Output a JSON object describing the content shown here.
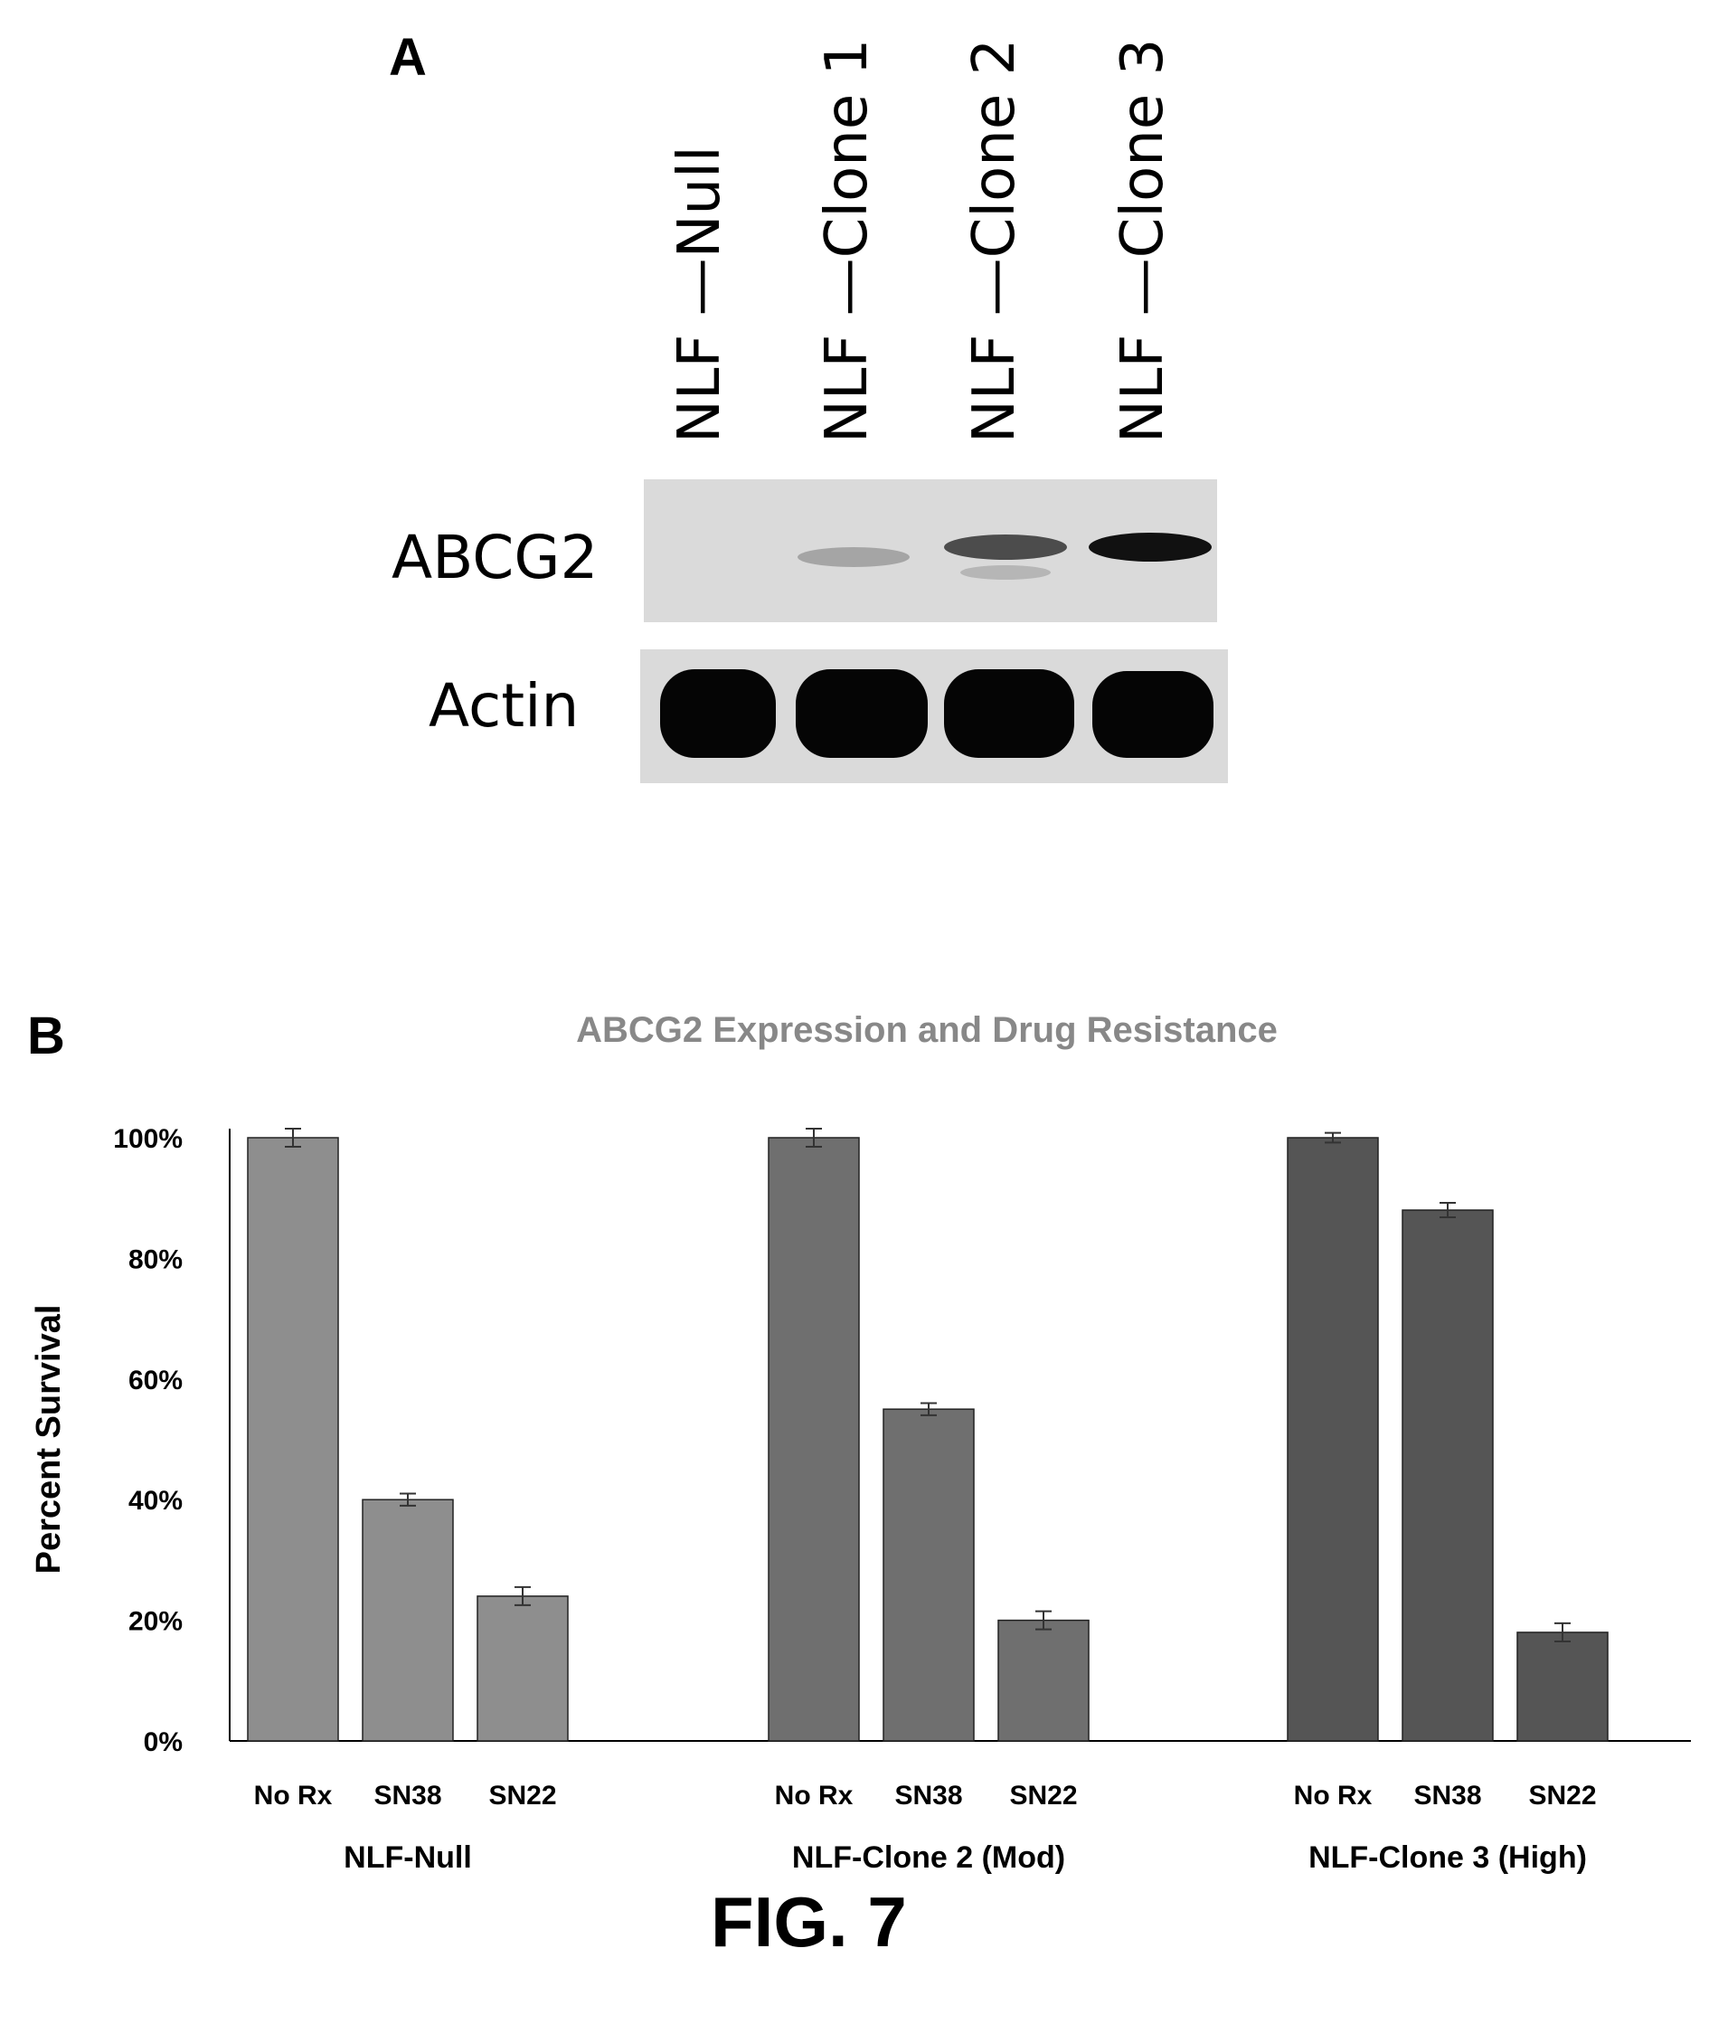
{
  "figure_label": "FIG. 7",
  "panel_a": {
    "letter": "A",
    "lanes": [
      "NLF —Null",
      "NLF —Clone 1",
      "NLF —Clone 2",
      "NLF —Clone 3"
    ],
    "rows": [
      {
        "label": "ABCG2",
        "band_intensity": [
          0.0,
          0.2,
          0.6,
          0.95
        ]
      },
      {
        "label": "Actin",
        "band_intensity": [
          1.0,
          1.0,
          1.0,
          1.0
        ]
      }
    ]
  },
  "panel_b": {
    "letter": "B"
  },
  "chart_data": {
    "type": "bar",
    "title": "ABCG2 Expression and Drug Resistance",
    "ylabel": "Percent Survival",
    "xlabel": "",
    "ylim": [
      0,
      100
    ],
    "y_ticks": [
      "0%",
      "20%",
      "40%",
      "60%",
      "80%",
      "100%"
    ],
    "groups": [
      {
        "name": "NLF-Null",
        "categories": [
          "No Rx",
          "SN38",
          "SN22"
        ],
        "values": [
          100,
          40,
          24
        ],
        "errors": [
          1.5,
          1.0,
          1.5
        ],
        "color": "#8e8e8e"
      },
      {
        "name": "NLF-Clone 2 (Mod)",
        "categories": [
          "No Rx",
          "SN38",
          "SN22"
        ],
        "values": [
          100,
          55,
          20
        ],
        "errors": [
          1.5,
          1.0,
          1.5
        ],
        "color": "#6f6f6f"
      },
      {
        "name": "NLF-Clone 3 (High)",
        "categories": [
          "No Rx",
          "SN38",
          "SN22"
        ],
        "values": [
          100,
          88,
          18
        ],
        "errors": [
          0.8,
          1.2,
          1.5
        ],
        "color": "#555555"
      }
    ],
    "grid": false,
    "legend": "none"
  }
}
